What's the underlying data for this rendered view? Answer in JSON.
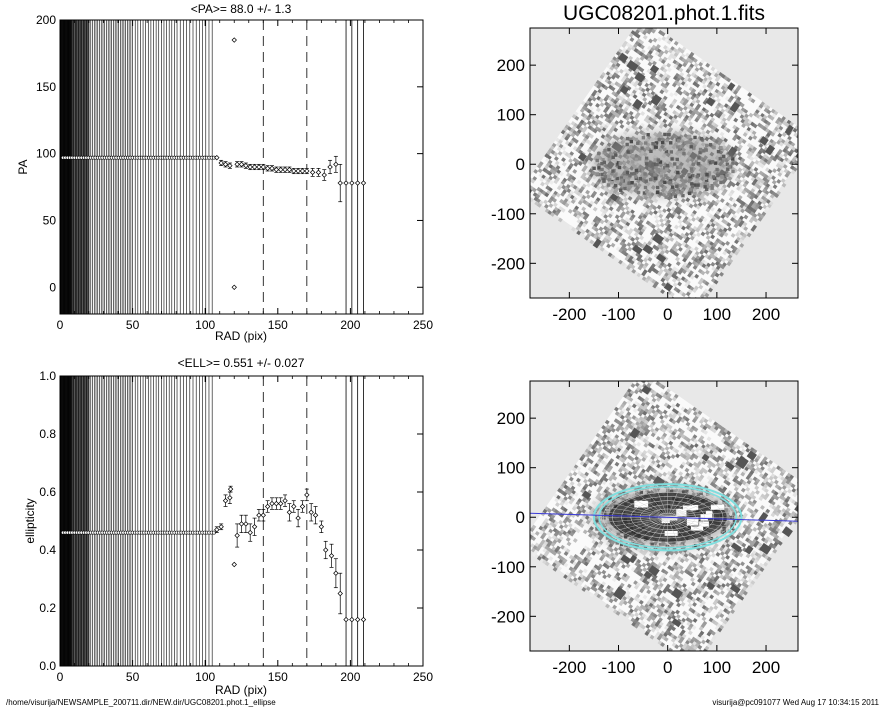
{
  "chart_data": [
    {
      "type": "scatter",
      "title": "<PA>=  88.0 +/-   1.3",
      "xlabel": "RAD (pix)",
      "ylabel": "PA",
      "xlim": [
        0,
        250
      ],
      "ylim": [
        -20,
        200
      ],
      "xticks": [
        "0",
        "50",
        "100",
        "150",
        "200",
        "250"
      ],
      "yticks": [
        "0",
        "50",
        "100",
        "150",
        "200"
      ],
      "dashed_x": [
        140,
        170
      ],
      "solid_x": [
        197,
        201,
        205,
        209
      ],
      "dense_lines_x_range": [
        0,
        107
      ],
      "constant_value": 97,
      "points": [
        {
          "x": 108,
          "y": 97,
          "e": 0
        },
        {
          "x": 111,
          "y": 93,
          "e": 2
        },
        {
          "x": 114,
          "y": 92,
          "e": 2
        },
        {
          "x": 117,
          "y": 91,
          "e": 2
        },
        {
          "x": 120,
          "y": 185,
          "e": 0
        },
        {
          "x": 120,
          "y": 0,
          "e": 0
        },
        {
          "x": 122,
          "y": 92,
          "e": 2
        },
        {
          "x": 125,
          "y": 92,
          "e": 2
        },
        {
          "x": 128,
          "y": 91,
          "e": 2
        },
        {
          "x": 131,
          "y": 90,
          "e": 2
        },
        {
          "x": 134,
          "y": 90,
          "e": 2
        },
        {
          "x": 137,
          "y": 90,
          "e": 2
        },
        {
          "x": 140,
          "y": 90,
          "e": 2
        },
        {
          "x": 143,
          "y": 89,
          "e": 2
        },
        {
          "x": 146,
          "y": 89,
          "e": 2
        },
        {
          "x": 149,
          "y": 88,
          "e": 2
        },
        {
          "x": 152,
          "y": 88,
          "e": 2
        },
        {
          "x": 155,
          "y": 88,
          "e": 2
        },
        {
          "x": 158,
          "y": 88,
          "e": 2
        },
        {
          "x": 161,
          "y": 87,
          "e": 2
        },
        {
          "x": 164,
          "y": 87,
          "e": 2
        },
        {
          "x": 167,
          "y": 87,
          "e": 2
        },
        {
          "x": 170,
          "y": 87,
          "e": 2
        },
        {
          "x": 174,
          "y": 86,
          "e": 3
        },
        {
          "x": 178,
          "y": 86,
          "e": 3
        },
        {
          "x": 182,
          "y": 84,
          "e": 4
        },
        {
          "x": 186,
          "y": 90,
          "e": 5
        },
        {
          "x": 190,
          "y": 92,
          "e": 6
        },
        {
          "x": 193,
          "y": 78,
          "e": 14
        },
        {
          "x": 197,
          "y": 78,
          "e": 0
        },
        {
          "x": 201,
          "y": 78,
          "e": 0
        },
        {
          "x": 205,
          "y": 78,
          "e": 0
        },
        {
          "x": 209,
          "y": 78,
          "e": 0
        }
      ]
    },
    {
      "type": "scatter",
      "title": "<ELL>= 0.551 +/-  0.027",
      "xlabel": "RAD (pix)",
      "ylabel": "ellipticity",
      "xlim": [
        0,
        250
      ],
      "ylim": [
        0,
        1
      ],
      "xticks": [
        "0",
        "50",
        "100",
        "150",
        "200",
        "250"
      ],
      "yticks": [
        "0.0",
        "0.2",
        "0.4",
        "0.6",
        "0.8",
        "1.0"
      ],
      "dashed_x": [
        140,
        170
      ],
      "solid_x": [
        197,
        201,
        205,
        209
      ],
      "dense_lines_x_range": [
        0,
        107
      ],
      "constant_value": 0.46,
      "points": [
        {
          "x": 108,
          "y": 0.47,
          "e": 0.01
        },
        {
          "x": 111,
          "y": 0.48,
          "e": 0.01
        },
        {
          "x": 114,
          "y": 0.57,
          "e": 0.02
        },
        {
          "x": 117,
          "y": 0.58,
          "e": 0.02
        },
        {
          "x": 117.5,
          "y": 0.61,
          "e": 0.01
        },
        {
          "x": 120,
          "y": 0.35,
          "e": 0
        },
        {
          "x": 122,
          "y": 0.45,
          "e": 0.04
        },
        {
          "x": 125,
          "y": 0.49,
          "e": 0.03
        },
        {
          "x": 128,
          "y": 0.49,
          "e": 0.03
        },
        {
          "x": 131,
          "y": 0.46,
          "e": 0.03
        },
        {
          "x": 134,
          "y": 0.48,
          "e": 0.03
        },
        {
          "x": 137,
          "y": 0.52,
          "e": 0.02
        },
        {
          "x": 140,
          "y": 0.52,
          "e": 0.02
        },
        {
          "x": 143,
          "y": 0.55,
          "e": 0.02
        },
        {
          "x": 146,
          "y": 0.56,
          "e": 0.02
        },
        {
          "x": 149,
          "y": 0.56,
          "e": 0.02
        },
        {
          "x": 152,
          "y": 0.56,
          "e": 0.02
        },
        {
          "x": 155,
          "y": 0.57,
          "e": 0.02
        },
        {
          "x": 158,
          "y": 0.53,
          "e": 0.03
        },
        {
          "x": 161,
          "y": 0.55,
          "e": 0.02
        },
        {
          "x": 164,
          "y": 0.51,
          "e": 0.03
        },
        {
          "x": 167,
          "y": 0.55,
          "e": 0.02
        },
        {
          "x": 170,
          "y": 0.59,
          "e": 0.02
        },
        {
          "x": 173,
          "y": 0.53,
          "e": 0.03
        },
        {
          "x": 176,
          "y": 0.52,
          "e": 0.03
        },
        {
          "x": 180,
          "y": 0.48,
          "e": 0.02
        },
        {
          "x": 183,
          "y": 0.4,
          "e": 0.03
        },
        {
          "x": 187,
          "y": 0.38,
          "e": 0.04
        },
        {
          "x": 190,
          "y": 0.32,
          "e": 0.05
        },
        {
          "x": 193,
          "y": 0.25,
          "e": 0.07
        },
        {
          "x": 197,
          "y": 0.16,
          "e": 0
        },
        {
          "x": 201,
          "y": 0.16,
          "e": 0
        },
        {
          "x": 205,
          "y": 0.16,
          "e": 0
        },
        {
          "x": 209,
          "y": 0.16,
          "e": 0
        }
      ]
    },
    {
      "type": "heatmap",
      "title": "UGC08201.phot.1.fits",
      "xlim": [
        -280,
        265
      ],
      "ylim": [
        -270,
        275
      ],
      "xticks": [
        "-200",
        "-100",
        "0",
        "100",
        "200"
      ],
      "yticks": [
        "200",
        "100",
        "0",
        "-100",
        "-200"
      ],
      "rotation_deg": 35
    },
    {
      "type": "heatmap",
      "title": "",
      "xlim": [
        -280,
        265
      ],
      "ylim": [
        -270,
        275
      ],
      "xticks": [
        "-200",
        "-100",
        "0",
        "100",
        "200"
      ],
      "yticks": [
        "200",
        "100",
        "0",
        "-100",
        "-200"
      ],
      "rotation_deg": 35,
      "ellipse_radius": 150,
      "ellipticity": 0.551,
      "pa_deg": 88
    }
  ],
  "footer": {
    "path": "/home/visurija/NEWSAMPLE_200711.dir/NEW.dir/UGC08201.phot.1_ellipse",
    "user_date": "visurija@pc091077  Wed Aug 17 10:34:15 2011"
  },
  "colors": {
    "ellipse": "#7fdede",
    "pa_line": "#3a3ad8",
    "image_bg": "#e8e8e8"
  }
}
